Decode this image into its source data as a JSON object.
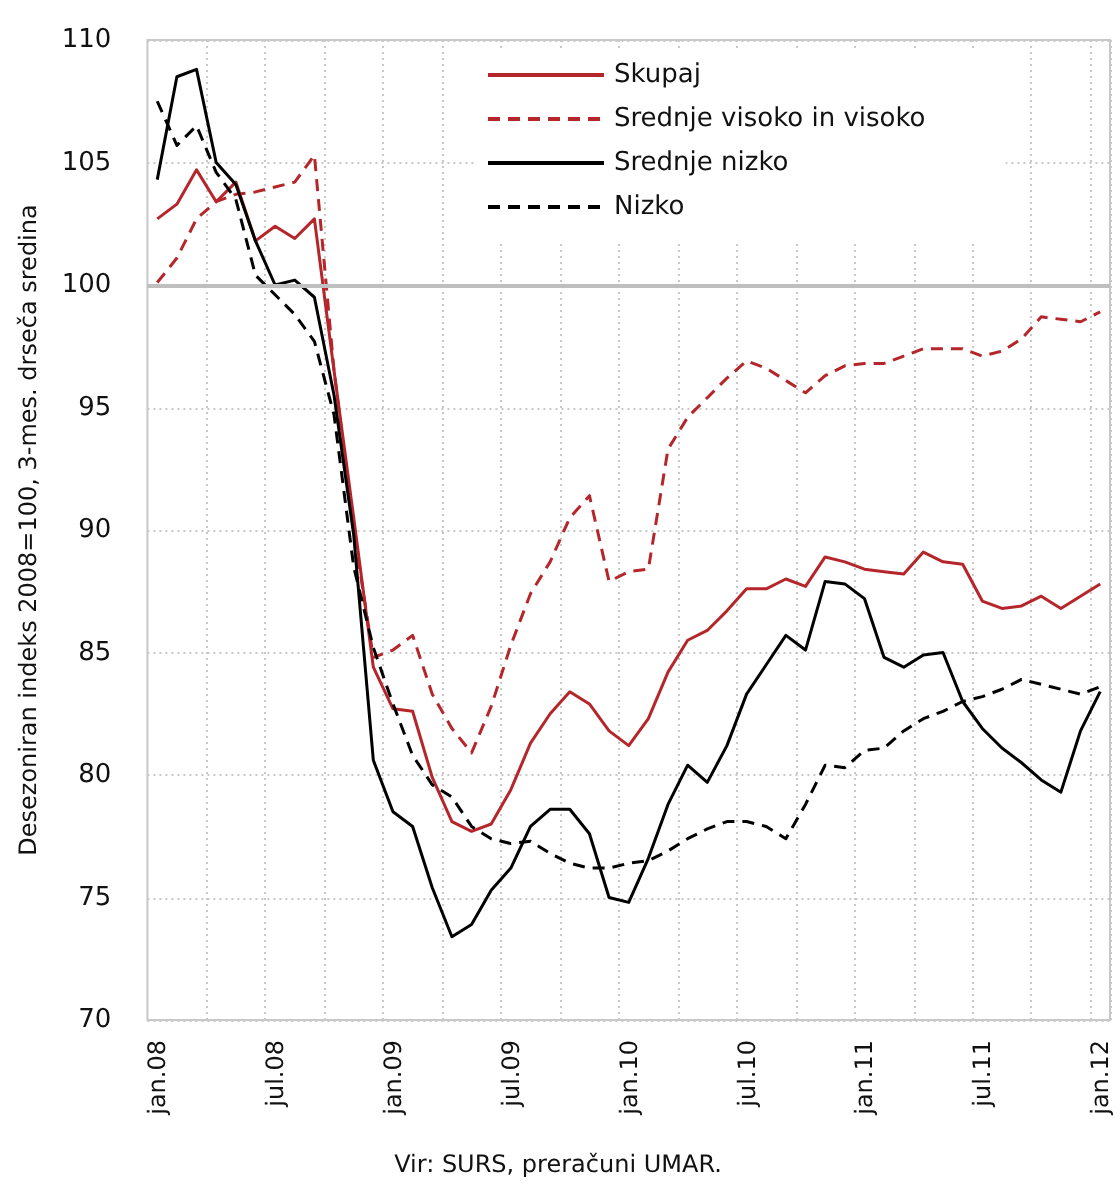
{
  "chart_data": {
    "type": "line",
    "ylabel": "Desezoniran indeks 2008=100, 3-mes. drseča sredina",
    "annotations": [
      "Vir: SURS, preračuni UMAR."
    ],
    "categories": [
      "jan.08",
      null,
      null,
      null,
      null,
      null,
      "jul.08",
      null,
      null,
      null,
      null,
      null,
      "jan.09",
      null,
      null,
      null,
      null,
      null,
      "jul.09",
      null,
      null,
      null,
      null,
      null,
      "jan.10",
      null,
      null,
      null,
      null,
      null,
      "jul.10",
      null,
      null,
      null,
      null,
      null,
      "jan.11",
      null,
      null,
      null,
      null,
      null,
      "jul.11",
      null,
      null,
      null,
      null,
      null,
      "jan.12"
    ],
    "series": [
      {
        "name": "Skupaj",
        "color": "#b5262b",
        "line_style": "solid",
        "values": [
          102.7,
          103.3,
          104.7,
          103.4,
          104.2,
          101.8,
          102.4,
          101.9,
          102.7,
          96.5,
          90.5,
          84.4,
          82.7,
          82.6,
          79.9,
          78.1,
          77.7,
          78.0,
          79.4,
          81.3,
          82.5,
          83.4,
          82.9,
          81.8,
          81.2,
          82.3,
          84.2,
          85.5,
          85.9,
          86.7,
          87.6,
          87.6,
          88.0,
          87.7,
          88.9,
          88.7,
          88.4,
          88.3,
          88.2,
          89.1,
          88.7,
          88.6,
          87.1,
          86.8,
          86.9,
          87.3,
          86.8,
          87.3,
          87.8
        ]
      },
      {
        "name": "Srednje visoko in visoko",
        "color": "#b5262b",
        "line_style": "dashed",
        "values": [
          100.1,
          101.1,
          102.7,
          103.4,
          103.7,
          103.8,
          104.0,
          104.2,
          105.3,
          96.5,
          90.0,
          84.8,
          85.1,
          85.7,
          83.3,
          81.9,
          80.9,
          82.8,
          85.3,
          87.4,
          88.7,
          90.5,
          91.4,
          87.9,
          88.3,
          88.4,
          93.3,
          94.6,
          95.4,
          96.2,
          96.9,
          96.6,
          96.1,
          95.6,
          96.3,
          96.7,
          96.8,
          96.8,
          97.1,
          97.4,
          97.4,
          97.4,
          97.1,
          97.3,
          97.8,
          98.7,
          98.6,
          98.5,
          98.9
        ]
      },
      {
        "name": "Srednje nizko",
        "color": "#000000",
        "line_style": "solid",
        "values": [
          104.3,
          108.5,
          108.8,
          105.0,
          104.1,
          101.8,
          100.0,
          100.2,
          99.5,
          95.5,
          89.8,
          80.6,
          78.5,
          77.9,
          75.4,
          73.4,
          73.9,
          75.3,
          76.2,
          77.9,
          78.6,
          78.6,
          77.6,
          75.0,
          74.8,
          76.6,
          78.8,
          80.4,
          79.7,
          81.2,
          83.3,
          84.5,
          85.7,
          85.1,
          87.9,
          87.8,
          87.2,
          84.8,
          84.4,
          84.9,
          85.0,
          83.0,
          81.9,
          81.1,
          80.5,
          79.8,
          79.3,
          81.8,
          83.4
        ]
      },
      {
        "name": "Nizko",
        "color": "#000000",
        "line_style": "dashed",
        "values": [
          107.5,
          105.7,
          106.5,
          104.6,
          103.5,
          100.4,
          99.6,
          98.8,
          97.7,
          94.7,
          88.5,
          85.2,
          82.9,
          80.8,
          79.6,
          79.1,
          77.9,
          77.4,
          77.2,
          77.3,
          76.8,
          76.4,
          76.2,
          76.2,
          76.4,
          76.5,
          76.9,
          77.4,
          77.8,
          78.1,
          78.1,
          77.9,
          77.4,
          78.8,
          80.4,
          80.3,
          81.0,
          81.1,
          81.8,
          82.3,
          82.6,
          83.0,
          83.2,
          83.5,
          83.9,
          83.7,
          83.5,
          83.3,
          83.6
        ]
      }
    ],
    "ylim": [
      70,
      110
    ],
    "yticks": [
      70,
      75,
      80,
      85,
      90,
      95,
      100,
      105,
      110
    ],
    "grid": true,
    "legend": "top right",
    "marker": "none",
    "ref_lines": [
      {
        "axis": "y",
        "value": 100,
        "color": "#bfbfbf"
      }
    ]
  }
}
